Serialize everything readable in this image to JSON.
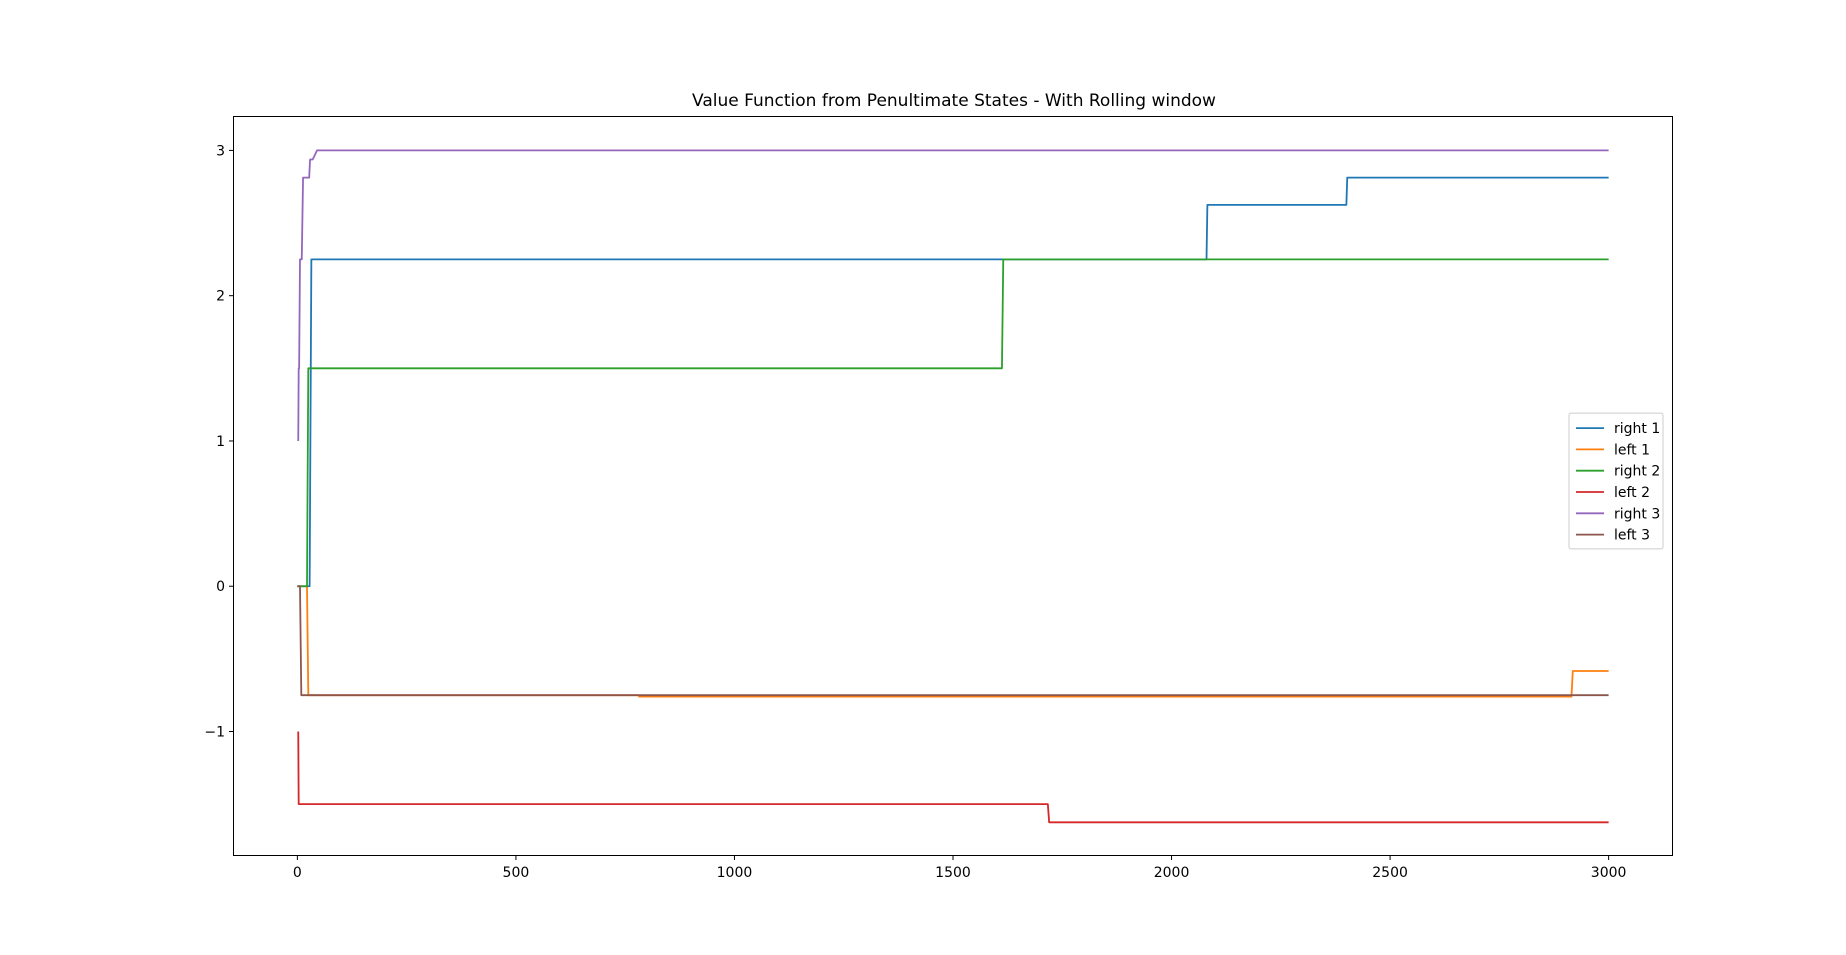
{
  "chart_data": {
    "type": "line",
    "title": "Value Function from Penultimate States - With Rolling window",
    "xlabel": "",
    "ylabel": "",
    "xlim": [
      -145,
      3145
    ],
    "ylim": [
      -1.85,
      3.23
    ],
    "xticks": [
      0,
      500,
      1000,
      1500,
      2000,
      2500,
      3000
    ],
    "xtick_labels": [
      "0",
      "500",
      "1000",
      "1500",
      "2000",
      "2500",
      "3000"
    ],
    "yticks": [
      -1,
      0,
      1,
      2,
      3
    ],
    "ytick_labels": [
      "−1",
      "0",
      "1",
      "2",
      "3"
    ],
    "grid": false,
    "legend_position": "center-right",
    "series": [
      {
        "name": "right 1",
        "color": "#1f77b4",
        "points": [
          [
            0,
            0
          ],
          [
            28,
            0
          ],
          [
            32,
            2.25
          ],
          [
            2080,
            2.25
          ],
          [
            2082,
            2.625
          ],
          [
            2400,
            2.625
          ],
          [
            2402,
            2.8125
          ],
          [
            3000,
            2.8125
          ]
        ]
      },
      {
        "name": "left 1",
        "color": "#ff7f0e",
        "points": [
          [
            0,
            0
          ],
          [
            22,
            0
          ],
          [
            25,
            -0.75
          ],
          [
            780,
            -0.75
          ],
          [
            782,
            -0.76
          ],
          [
            2915,
            -0.76
          ],
          [
            2918,
            -0.5833
          ],
          [
            3000,
            -0.5833
          ]
        ]
      },
      {
        "name": "right 2",
        "color": "#2ca02c",
        "points": [
          [
            0,
            0
          ],
          [
            22,
            0
          ],
          [
            25,
            1.5
          ],
          [
            1612,
            1.5
          ],
          [
            1615,
            2.25
          ],
          [
            3000,
            2.25
          ]
        ]
      },
      {
        "name": "left 2",
        "color": "#d62728",
        "points": [
          [
            2,
            -1
          ],
          [
            3,
            -1.5
          ],
          [
            1717,
            -1.5
          ],
          [
            1720,
            -1.625
          ],
          [
            3000,
            -1.625
          ]
        ]
      },
      {
        "name": "right 3",
        "color": "#9467bd",
        "points": [
          [
            2,
            1
          ],
          [
            3,
            1.5
          ],
          [
            4,
            1.5
          ],
          [
            6,
            2.25
          ],
          [
            10,
            2.25
          ],
          [
            13,
            2.8125
          ],
          [
            27,
            2.8125
          ],
          [
            29,
            2.9375
          ],
          [
            35,
            2.9375
          ],
          [
            45,
            3
          ],
          [
            3000,
            3
          ]
        ]
      },
      {
        "name": "left 3",
        "color": "#8c564b",
        "points": [
          [
            0,
            0
          ],
          [
            6,
            0
          ],
          [
            9,
            -0.75
          ],
          [
            3000,
            -0.75
          ]
        ]
      }
    ]
  }
}
